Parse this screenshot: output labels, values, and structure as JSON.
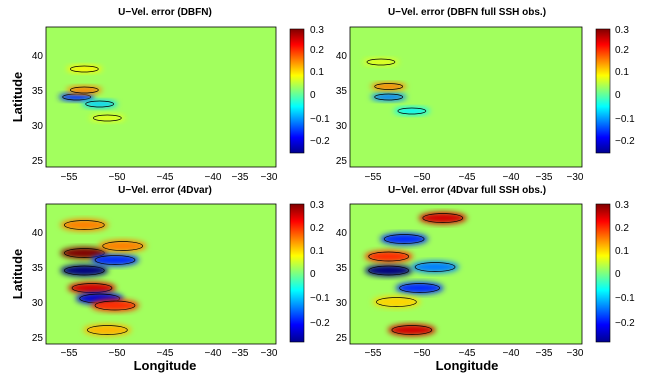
{
  "colorbar": {
    "min": -0.3,
    "max": 0.3,
    "colormap": "jet",
    "tick_labels": [
      "0.3",
      "0.2",
      "0.1",
      "0",
      "−0.1",
      "−0.2"
    ]
  },
  "xlabel": "Longitude",
  "ylabel": "Latitude",
  "x_tick_labels": [
    "−55",
    "−50",
    "−45",
    "−40",
    "−35",
    "−30"
  ],
  "y_tick_labels": [
    "40",
    "35",
    "30",
    "25"
  ],
  "chart_data": [
    {
      "type": "heatmap",
      "title": "U−Vel. error (DBFN)",
      "xlabel": "",
      "ylabel": "Latitude",
      "xlim": [
        -60,
        -30
      ],
      "ylim": [
        24,
        44
      ],
      "pattern": "weak",
      "blobs": [
        {
          "lon": -56,
          "lat": 34,
          "value": -0.2
        },
        {
          "lon": -55,
          "lat": 35,
          "value": 0.15
        },
        {
          "lon": -53,
          "lat": 33,
          "value": -0.1
        },
        {
          "lon": -55,
          "lat": 38,
          "value": 0.08
        },
        {
          "lon": -52,
          "lat": 31,
          "value": 0.06
        }
      ]
    },
    {
      "type": "heatmap",
      "title": "U−Vel. error (DBFN full SSH obs.)",
      "xlabel": "",
      "ylabel": "",
      "xlim": [
        -60,
        -30
      ],
      "ylim": [
        24,
        44
      ],
      "pattern": "weak",
      "blobs": [
        {
          "lon": -55,
          "lat": 34,
          "value": -0.15
        },
        {
          "lon": -55,
          "lat": 35.5,
          "value": 0.15
        },
        {
          "lon": -52,
          "lat": 32,
          "value": -0.08
        },
        {
          "lon": -56,
          "lat": 39,
          "value": 0.06
        }
      ]
    },
    {
      "type": "heatmap",
      "title": "U−Vel. error (4Dvar)",
      "xlabel": "Longitude",
      "ylabel": "Latitude",
      "xlim": [
        -60,
        -30
      ],
      "ylim": [
        24,
        44
      ],
      "pattern": "strong",
      "blobs": [
        {
          "lon": -55,
          "lat": 37,
          "value": 0.3
        },
        {
          "lon": -55,
          "lat": 34.5,
          "value": -0.3
        },
        {
          "lon": -54,
          "lat": 32,
          "value": 0.25
        },
        {
          "lon": -53,
          "lat": 30.5,
          "value": -0.25
        },
        {
          "lon": -51,
          "lat": 29.5,
          "value": 0.2
        },
        {
          "lon": -55,
          "lat": 41,
          "value": 0.15
        },
        {
          "lon": -51,
          "lat": 36,
          "value": -0.2
        },
        {
          "lon": -50,
          "lat": 38,
          "value": 0.15
        },
        {
          "lon": -52,
          "lat": 26,
          "value": 0.12
        }
      ]
    },
    {
      "type": "heatmap",
      "title": "U−Vel. error (4Dvar full SSH obs.)",
      "xlabel": "Longitude",
      "ylabel": "",
      "xlim": [
        -60,
        -30
      ],
      "ylim": [
        24,
        44
      ],
      "pattern": "strong",
      "blobs": [
        {
          "lon": -55,
          "lat": 34.5,
          "value": -0.3
        },
        {
          "lon": -55,
          "lat": 36.5,
          "value": 0.2
        },
        {
          "lon": -52,
          "lat": 26,
          "value": 0.25
        },
        {
          "lon": -48,
          "lat": 42,
          "value": 0.25
        },
        {
          "lon": -53,
          "lat": 39,
          "value": -0.2
        },
        {
          "lon": -51,
          "lat": 32,
          "value": -0.2
        },
        {
          "lon": -49,
          "lat": 35,
          "value": -0.15
        },
        {
          "lon": -54,
          "lat": 30,
          "value": 0.1
        }
      ]
    }
  ]
}
